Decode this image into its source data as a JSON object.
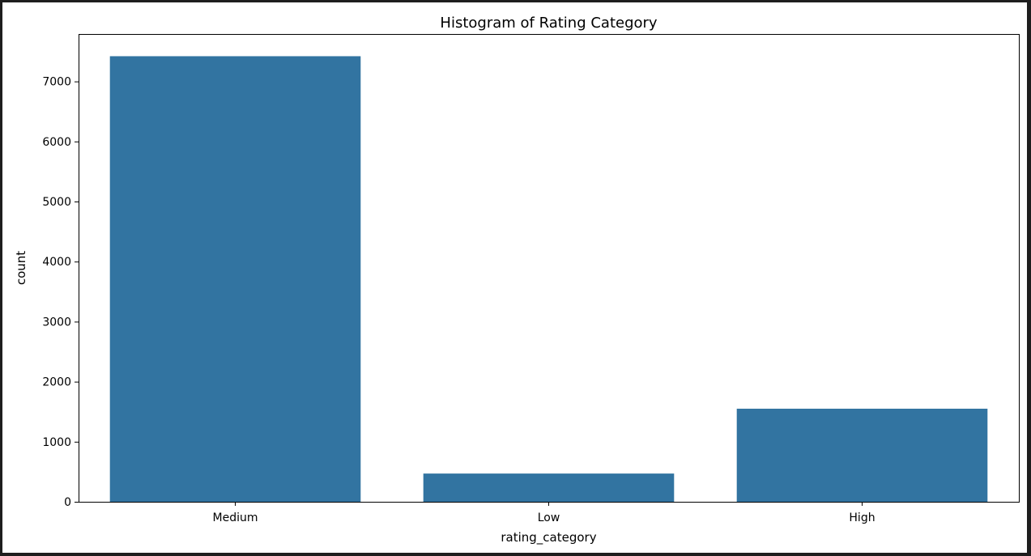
{
  "chart_data": {
    "type": "bar",
    "title": "Histogram of Rating Category",
    "xlabel": "rating_category",
    "ylabel": "count",
    "categories": [
      "Medium",
      "Low",
      "High"
    ],
    "values": [
      7420,
      470,
      1550
    ],
    "ylim": [
      0,
      7790
    ],
    "yticks": [
      0,
      1000,
      2000,
      3000,
      4000,
      5000,
      6000,
      7000
    ],
    "ytick_labels": [
      "0",
      "1000",
      "2000",
      "3000",
      "4000",
      "5000",
      "6000",
      "7000"
    ],
    "grid": false,
    "bar_color": "#3274a1"
  }
}
